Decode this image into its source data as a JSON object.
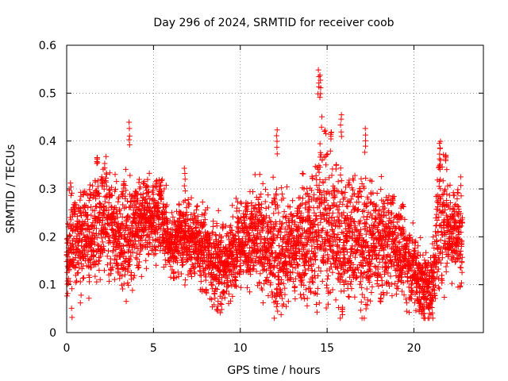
{
  "chart_data": {
    "type": "scatter",
    "title": "Day 296 of 2024, SRMTID for receiver coob",
    "xlabel": "GPS time / hours",
    "ylabel": "SRMTID / TECUs",
    "xlim": [
      0,
      24
    ],
    "ylim": [
      0,
      0.6
    ],
    "xticks": [
      0,
      5,
      10,
      15,
      20
    ],
    "xtick_labels": [
      "0",
      "5",
      "10",
      "15",
      "20"
    ],
    "yticks": [
      0,
      0.1,
      0.2,
      0.3,
      0.4,
      0.5,
      0.6
    ],
    "ytick_labels": [
      "0",
      "0.1",
      "0.2",
      "0.3",
      "0.4",
      "0.5",
      "0.6"
    ],
    "grid": true,
    "marker": "+",
    "color": "#ff0000",
    "series": [
      {
        "name": "SRMTID",
        "x_range": [
          0,
          22.8
        ],
        "sample_step_hours": 0.01,
        "profile_hours": [
          0,
          1,
          2,
          3,
          3.6,
          4,
          5,
          5.4,
          6,
          6.8,
          7.5,
          8.5,
          9,
          10,
          11,
          12,
          13,
          14,
          14.6,
          15.5,
          16.5,
          17.5,
          18.5,
          19.5,
          20.5,
          21,
          21.5,
          22,
          22.8
        ],
        "profile_median": [
          0.18,
          0.2,
          0.25,
          0.2,
          0.2,
          0.22,
          0.24,
          0.26,
          0.18,
          0.2,
          0.19,
          0.15,
          0.13,
          0.2,
          0.2,
          0.17,
          0.18,
          0.2,
          0.25,
          0.2,
          0.2,
          0.18,
          0.2,
          0.16,
          0.1,
          0.09,
          0.25,
          0.22,
          0.2
        ],
        "profile_spread": [
          0.1,
          0.09,
          0.1,
          0.08,
          0.12,
          0.07,
          0.08,
          0.08,
          0.06,
          0.07,
          0.07,
          0.08,
          0.07,
          0.08,
          0.09,
          0.12,
          0.09,
          0.12,
          0.15,
          0.13,
          0.12,
          0.11,
          0.09,
          0.08,
          0.07,
          0.06,
          0.13,
          0.09,
          0.1
        ],
        "peaks": [
          {
            "x": 3.6,
            "y": 0.44
          },
          {
            "x": 6.8,
            "y": 0.345
          },
          {
            "x": 12.1,
            "y": 0.425
          },
          {
            "x": 14.5,
            "y": 0.55
          },
          {
            "x": 14.6,
            "y": 0.54
          },
          {
            "x": 15.8,
            "y": 0.46
          },
          {
            "x": 17.2,
            "y": 0.43
          },
          {
            "x": 21.5,
            "y": 0.4
          }
        ],
        "lows": [
          {
            "x": 8.7,
            "y": 0.045
          },
          {
            "x": 20.6,
            "y": 0.03
          },
          {
            "x": 20.9,
            "y": 0.04
          }
        ]
      }
    ]
  }
}
